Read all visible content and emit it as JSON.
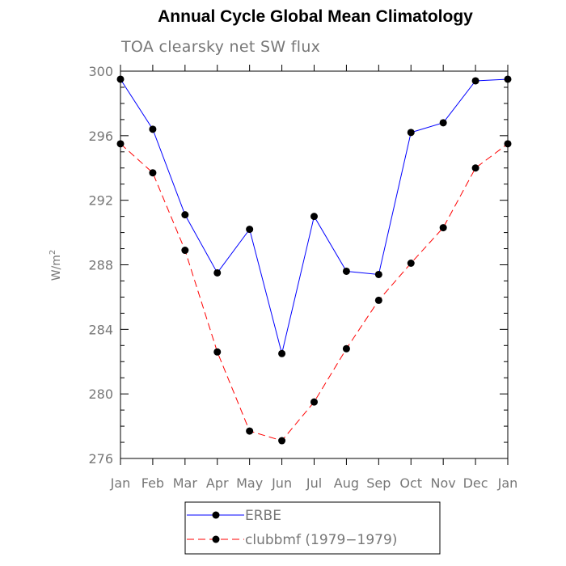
{
  "chart_data": {
    "type": "line",
    "title": "Annual Cycle Global Mean Climatology",
    "subtitle": "TOA clearsky net SW flux",
    "xlabel": "",
    "ylabel": "W/m",
    "ylabel_superscript": "2",
    "categories": [
      "Jan",
      "Feb",
      "Mar",
      "Apr",
      "May",
      "Jun",
      "Jul",
      "Aug",
      "Sep",
      "Oct",
      "Nov",
      "Dec",
      "Jan"
    ],
    "ylim": [
      276,
      300
    ],
    "yticks": [
      276,
      280,
      284,
      288,
      292,
      296,
      300
    ],
    "grid": false,
    "legend_position": "bottom",
    "series": [
      {
        "name": "ERBE",
        "color": "#0000ff",
        "line_style": "solid",
        "marker": "filled-circle",
        "values": [
          299.5,
          296.4,
          291.1,
          287.5,
          290.2,
          282.5,
          291.0,
          287.6,
          287.4,
          296.2,
          296.8,
          299.4,
          299.5
        ]
      },
      {
        "name": "clubbmf (1979−1979)",
        "color": "#ff0000",
        "line_style": "dashed",
        "marker": "filled-circle",
        "values": [
          295.5,
          293.7,
          288.9,
          282.6,
          277.7,
          277.1,
          279.5,
          282.8,
          285.8,
          288.1,
          290.3,
          294.0,
          295.5
        ]
      }
    ]
  }
}
